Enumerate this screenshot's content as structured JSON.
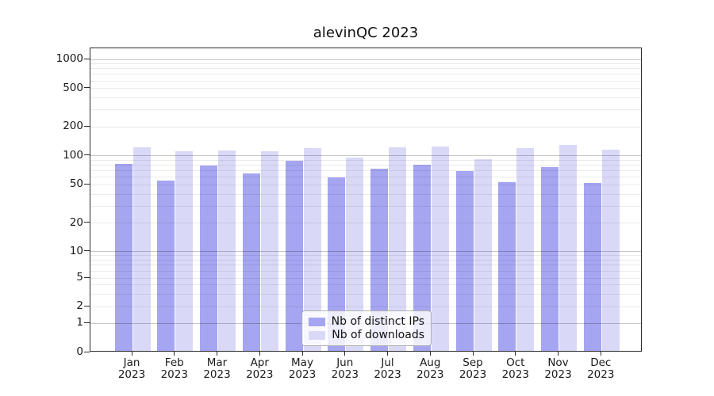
{
  "chart_data": {
    "type": "bar",
    "title": "alevinQC 2023",
    "year": "2023",
    "categories": [
      "Jan",
      "Feb",
      "Mar",
      "Apr",
      "May",
      "Jun",
      "Jul",
      "Aug",
      "Sep",
      "Oct",
      "Nov",
      "Dec"
    ],
    "series": [
      {
        "name": "Nb of distinct IPs",
        "color": "#a5a5f1",
        "values": [
          83,
          55,
          79,
          66,
          88,
          60,
          74,
          80,
          69,
          53,
          77,
          52
        ]
      },
      {
        "name": "Nb of downloads",
        "color": "#d9d9f7",
        "values": [
          122,
          111,
          114,
          111,
          120,
          95,
          122,
          125,
          92,
          121,
          130,
          116
        ]
      }
    ],
    "yscale": "symlog",
    "ylim": [
      0,
      1300
    ],
    "y_ticks": [
      0,
      1,
      2,
      5,
      10,
      20,
      50,
      100,
      200,
      500,
      1000
    ],
    "y_major_gridlines": [
      1,
      10,
      100,
      1000
    ],
    "grid": true,
    "legend_position": "lower center",
    "x_tick_label_format": "month over year, two lines"
  },
  "colors": {
    "background": "#ffffff",
    "axis": "#2b2b2b",
    "text": "#1a1a1a",
    "grid_major": "#c7c7c7",
    "grid_minor": "#ebebeb",
    "legend_border": "#b0b0b0"
  }
}
